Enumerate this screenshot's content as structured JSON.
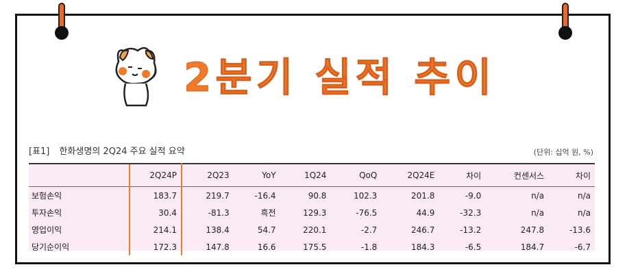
{
  "title": "2분기 실적 추이",
  "table": {
    "caption_tag": "[표1]",
    "caption_text": "한화생명의 2Q24 주요 실적 요약",
    "unit": "(단위: 십억 원, %)",
    "columns": [
      "",
      "2Q24P",
      "2Q23",
      "YoY",
      "1Q24",
      "QoQ",
      "2Q24E",
      "차이",
      "컨센서스",
      "차이"
    ],
    "rows": [
      {
        "label": "보험손익",
        "cells": [
          "183.7",
          "219.7",
          "-16.4",
          "90.8",
          "102.3",
          "201.8",
          "-9.0",
          "n/a",
          "n/a"
        ]
      },
      {
        "label": "투자손익",
        "cells": [
          "30.4",
          "-81.3",
          "흑전",
          "129.3",
          "-76.5",
          "44.9",
          "-32.3",
          "n/a",
          "n/a"
        ]
      },
      {
        "label": "영업이익",
        "cells": [
          "214.1",
          "138.4",
          "54.7",
          "220.1",
          "-2.7",
          "246.7",
          "-13.2",
          "247.8",
          "-13.6"
        ]
      },
      {
        "label": "당기순이익",
        "cells": [
          "172.3",
          "147.8",
          "16.6",
          "175.5",
          "-1.8",
          "184.3",
          "-6.5",
          "184.7",
          "-6.7"
        ]
      }
    ]
  },
  "colors": {
    "accent": "#f07a2a",
    "table_bg": "#fbe9f5"
  }
}
